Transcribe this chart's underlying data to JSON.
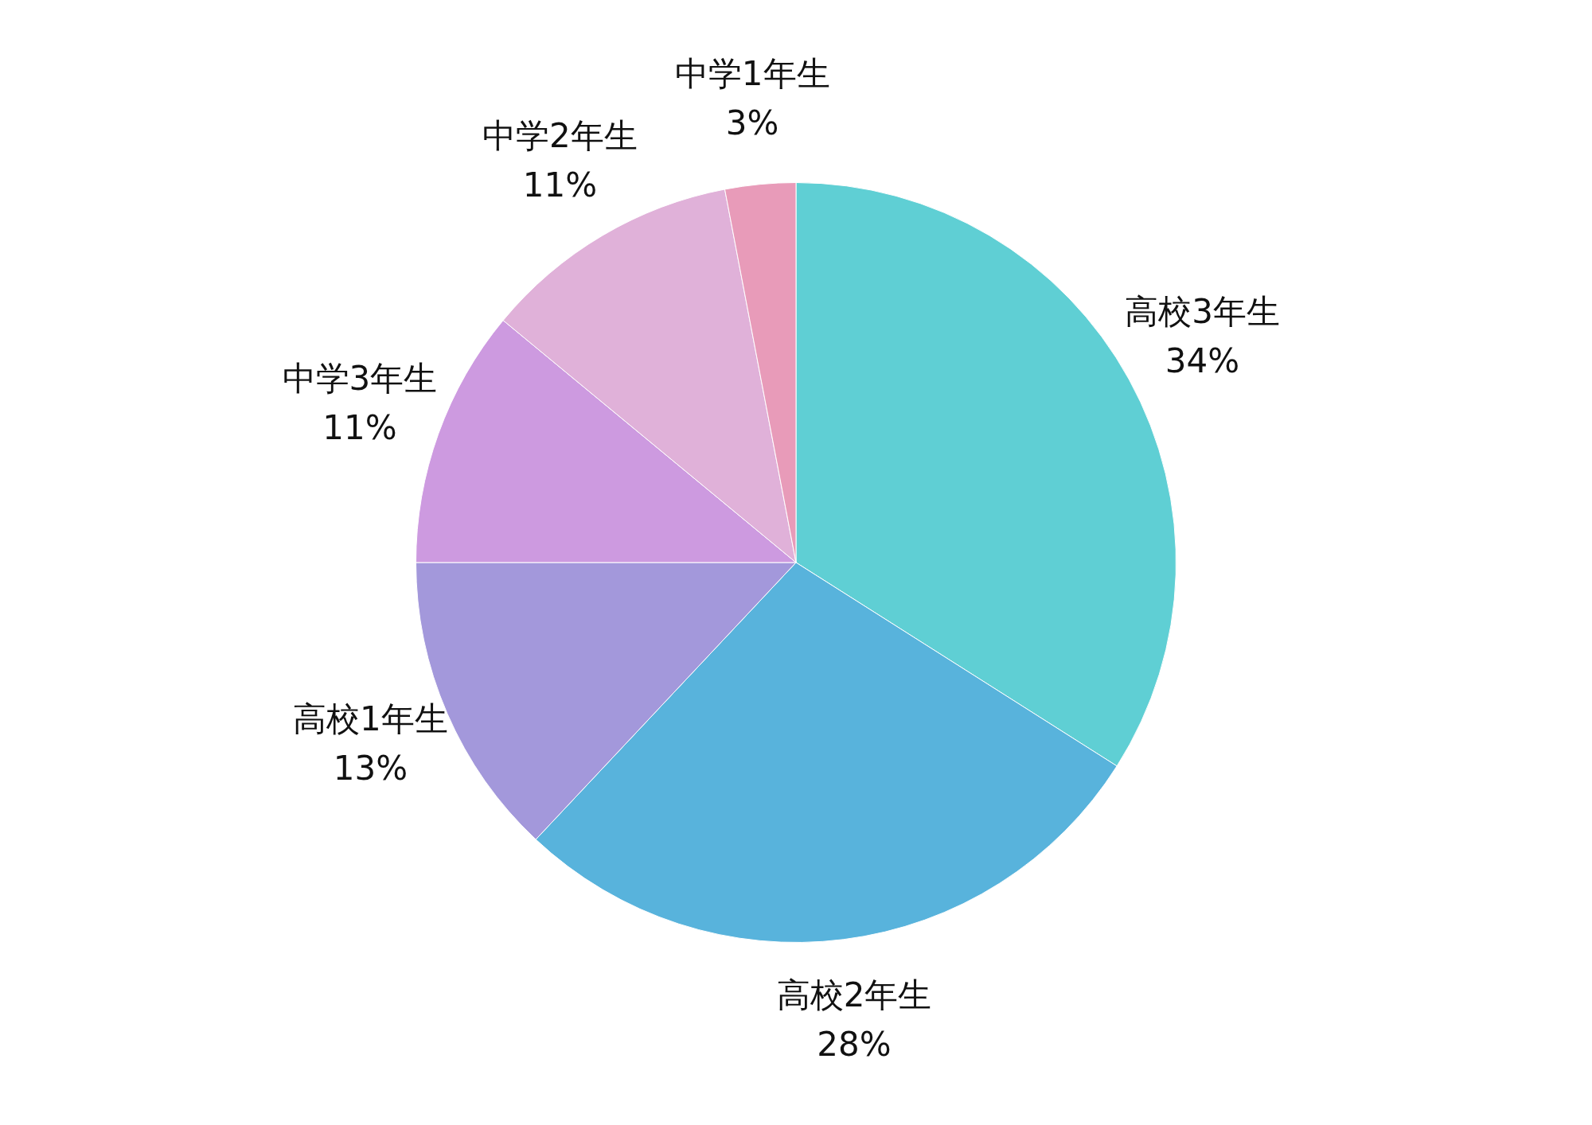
{
  "chart_data": {
    "type": "pie",
    "categories": [
      "高校3年生",
      "高校2年生",
      "高校1年生",
      "中学3年生",
      "中学2年生",
      "中学1年生"
    ],
    "values": [
      34,
      28,
      13,
      11,
      11,
      3
    ],
    "value_labels": [
      "34%",
      "28%",
      "13%",
      "11%",
      "11%",
      "3%"
    ],
    "colors": [
      "#5fcfd4",
      "#58b3dc",
      "#a398db",
      "#cd9ae0",
      "#e0b1d9",
      "#e89bb9"
    ]
  }
}
